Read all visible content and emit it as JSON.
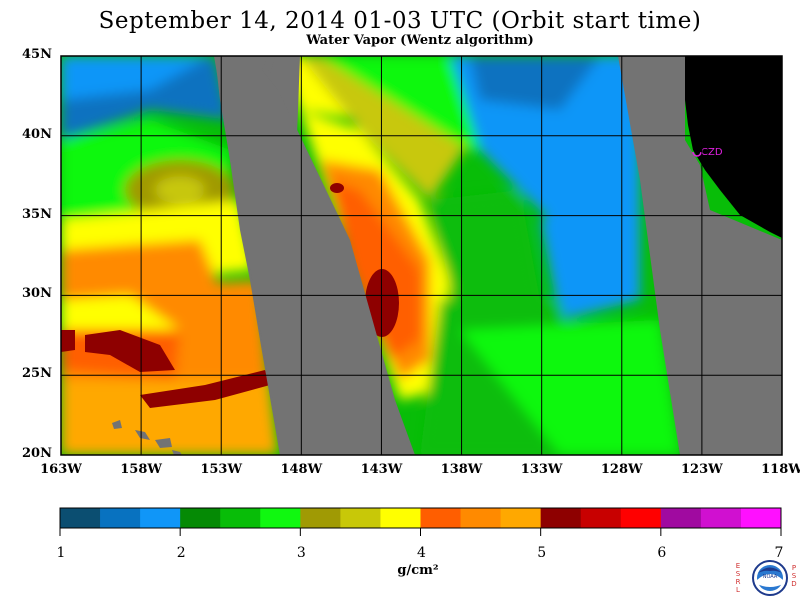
{
  "title": "September 14, 2014  01-03 UTC  (Orbit start time)",
  "subtitle": "Water Vapor (Wentz algorithm)",
  "map": {
    "lat_labels": [
      "45N",
      "40N",
      "35N",
      "30N",
      "25N",
      "20N"
    ],
    "lon_labels": [
      "163W",
      "158W",
      "153W",
      "148W",
      "143W",
      "138W",
      "133W",
      "128W",
      "123W",
      "118W"
    ],
    "station_label": "CZD",
    "colors": {
      "no_data": "#737373",
      "land": "#000000",
      "grid": "#000000",
      "station": "#e020e0"
    }
  },
  "colorbar": {
    "ticks": [
      "1",
      "2",
      "3",
      "4",
      "5",
      "6",
      "7"
    ],
    "units": "g/cm²",
    "colors": [
      "#0b4e71",
      "#0872c0",
      "#1096f8",
      "#058a05",
      "#08bd08",
      "#10f810",
      "#a09a04",
      "#c8c808",
      "#ffff00",
      "#ff5e00",
      "#ff8a00",
      "#ffa800",
      "#8e0000",
      "#c80000",
      "#ff0000",
      "#a00aa0",
      "#d010d0",
      "#ff10ff"
    ]
  },
  "logo": {
    "left_letters": "ESRL",
    "right_letters": "PSD",
    "center_label": "NOAA"
  }
}
